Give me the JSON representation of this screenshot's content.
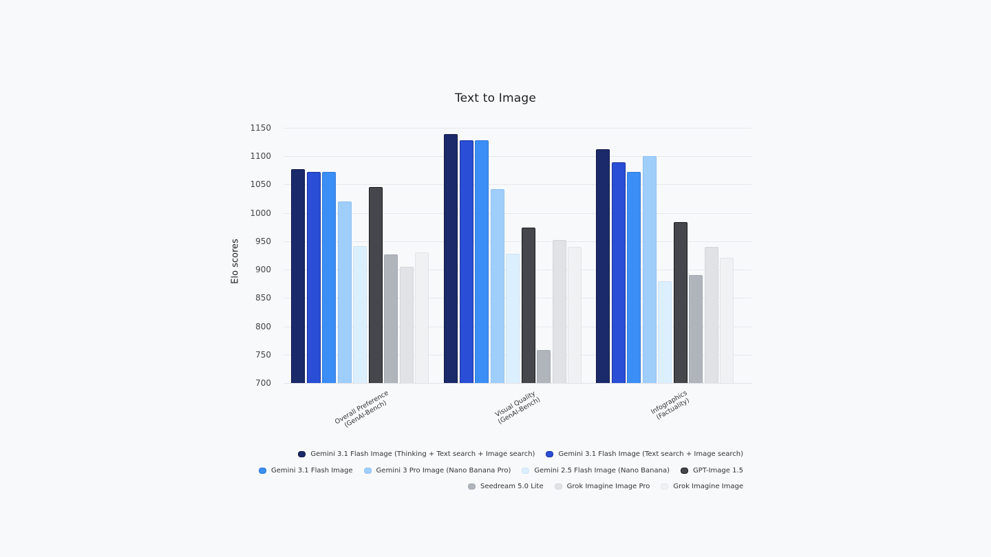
{
  "chart_data": {
    "type": "bar",
    "title": "Text to Image",
    "xlabel": "",
    "ylabel": "Elo scores",
    "ylim": [
      700,
      1150
    ],
    "yticks": [
      700,
      750,
      800,
      850,
      900,
      950,
      1000,
      1050,
      1100,
      1150
    ],
    "grid": true,
    "legend_position": "bottom-right",
    "categories": [
      [
        "Overall Preference",
        "(GenAI-Bench)"
      ],
      [
        "Visual Quality",
        "(GenAI-Bench)"
      ],
      [
        "Infographics",
        "(Factuality)"
      ]
    ],
    "series": [
      {
        "name": "Gemini 3.1 Flash Image (Thinking + Text search + Image search)",
        "color": "#1b2a6b",
        "border": "#0d1640",
        "values": [
          1077,
          1139,
          1112
        ]
      },
      {
        "name": "Gemini 3.1 Flash Image (Text search + Image search)",
        "color": "#2a4fd6",
        "border": "#1a2f9a",
        "values": [
          1072,
          1128,
          1089
        ]
      },
      {
        "name": "Gemini 3.1 Flash Image",
        "color": "#3b8ef5",
        "border": "#2f77d8",
        "values": [
          1072,
          1128,
          1072
        ]
      },
      {
        "name": "Gemini 3 Pro Image (Nano Banana Pro)",
        "color": "#9fcefb",
        "border": "#8ec0f0",
        "values": [
          1020,
          1042,
          1100
        ]
      },
      {
        "name": "Gemini 2.5 Flash Image (Nano Banana)",
        "color": "#dcefff",
        "border": "#cde3f5",
        "values": [
          941,
          928,
          880
        ]
      },
      {
        "name": "GPT-Image 1.5",
        "color": "#45474c",
        "border": "#1a1a1c",
        "values": [
          1046,
          974,
          984
        ]
      },
      {
        "name": "Seedream 5.0 Lite",
        "color": "#b0b5bc",
        "border": "#a3a8af",
        "values": [
          927,
          758,
          890
        ]
      },
      {
        "name": "Grok Imagine Image Pro",
        "color": "#e0e2e5",
        "border": "#d4d6da",
        "values": [
          905,
          952,
          940
        ]
      },
      {
        "name": "Grok Imagine Image",
        "color": "#f0f1f3",
        "border": "#e2e4e7",
        "values": [
          930,
          940,
          921
        ]
      }
    ]
  },
  "legend_rows": [
    [
      0,
      1
    ],
    [
      2,
      3,
      4,
      5
    ],
    [
      6,
      7,
      8
    ]
  ]
}
